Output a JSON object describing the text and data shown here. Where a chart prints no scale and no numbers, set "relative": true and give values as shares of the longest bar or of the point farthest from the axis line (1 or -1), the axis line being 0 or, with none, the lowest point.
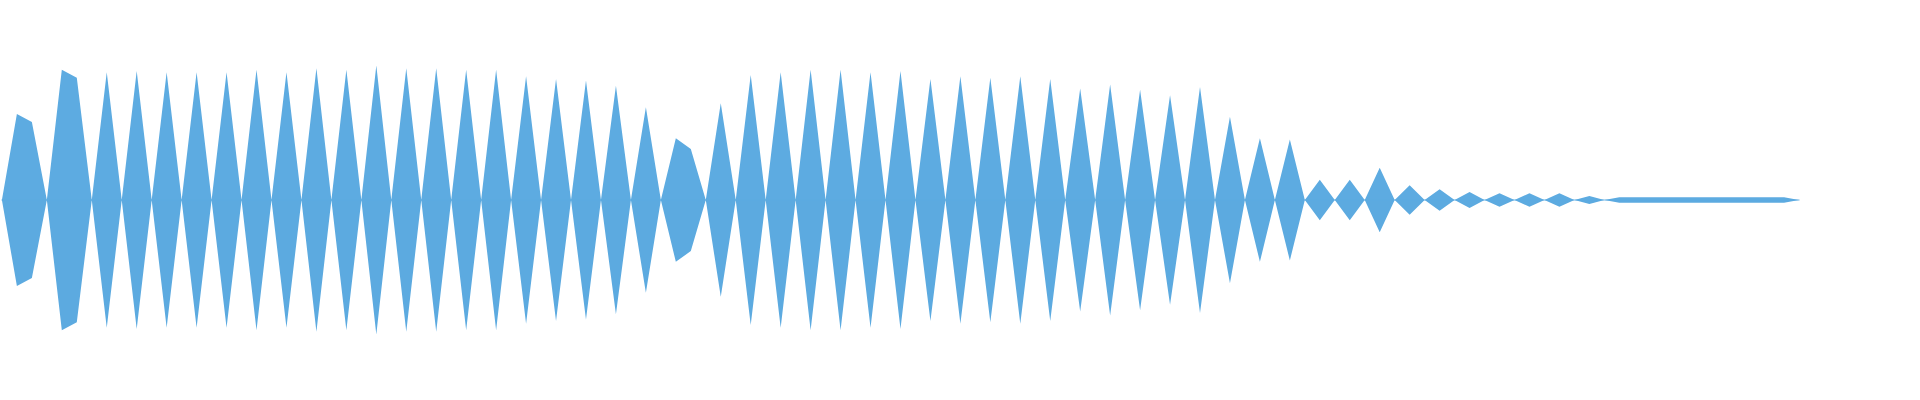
{
  "chart_data": {
    "type": "area",
    "relative": true,
    "categories": [
      null,
      null,
      null,
      null,
      null,
      null,
      null,
      null,
      null,
      null,
      null,
      null,
      null,
      null,
      null,
      null,
      null,
      null,
      null,
      null,
      null,
      null,
      null,
      null,
      null,
      null,
      null,
      null,
      null,
      null,
      null,
      null,
      null,
      null,
      null,
      null,
      null,
      null,
      null,
      null,
      null,
      null,
      null,
      null,
      null,
      null,
      null,
      null,
      null,
      null,
      null,
      null,
      null,
      null,
      null,
      null,
      null,
      null,
      null,
      null,
      null,
      null,
      null,
      null,
      null,
      null,
      null,
      null,
      null,
      null,
      null,
      null,
      null,
      null,
      null,
      null,
      null,
      null,
      null,
      null,
      null,
      null,
      null,
      null,
      null,
      null,
      null,
      null,
      null,
      null,
      null,
      null,
      null,
      null,
      null,
      null,
      null,
      null,
      null,
      null,
      null,
      null,
      null,
      null,
      null,
      null,
      null,
      null,
      null,
      null,
      null,
      null,
      null,
      null,
      null,
      null,
      null,
      null,
      null,
      null,
      null
    ],
    "series": [
      {
        "color": "#5dabe1",
        "values": [
          0,
          0.64,
          0.58,
          0,
          0.97,
          0.91,
          0,
          0.95,
          0,
          0.96,
          0,
          0.95,
          0,
          0.95,
          0,
          0.95,
          0,
          0.97,
          0,
          0.95,
          0,
          0.98,
          0,
          0.97,
          0,
          1.0,
          0,
          0.98,
          0,
          0.98,
          0,
          0.97,
          0,
          0.97,
          0,
          0.92,
          0,
          0.9,
          0,
          0.89,
          0,
          0.85,
          0,
          0.69,
          0,
          0.46,
          0.38,
          0,
          0.72,
          0,
          0.93,
          0,
          0.95,
          0,
          0.97,
          0,
          0.97,
          0,
          0.95,
          0,
          0.96,
          0,
          0.9,
          0,
          0.92,
          0,
          0.91,
          0,
          0.92,
          0,
          0.9,
          0,
          0.83,
          0,
          0.86,
          0,
          0.82,
          0,
          0.78,
          0,
          0.84,
          0,
          0.62,
          0,
          0.46,
          0,
          0.45,
          0,
          0.15,
          0,
          0.15,
          0,
          0.24,
          0,
          0.11,
          0,
          0.08,
          0,
          0.06,
          0,
          0.05,
          0,
          0.05,
          0,
          0.05,
          0,
          0.03,
          0,
          0.02,
          0.02,
          0.02,
          0.02,
          0.02,
          0.02,
          0.02,
          0.02,
          0.02,
          0.02,
          0.02,
          0.02,
          0
        ]
      },
      {
        "color": "#5caae0",
        "values": [
          0,
          -0.64,
          -0.58,
          0,
          -0.97,
          -0.91,
          0,
          -0.95,
          0,
          -0.96,
          0,
          -0.95,
          0,
          -0.95,
          0,
          -0.95,
          0,
          -0.97,
          0,
          -0.95,
          0,
          -0.98,
          0,
          -0.97,
          0,
          -1.0,
          0,
          -0.98,
          0,
          -0.98,
          0,
          -0.97,
          0,
          -0.97,
          0,
          -0.92,
          0,
          -0.9,
          0,
          -0.89,
          0,
          -0.85,
          0,
          -0.69,
          0,
          -0.46,
          -0.38,
          0,
          -0.72,
          0,
          -0.93,
          0,
          -0.95,
          0,
          -0.97,
          0,
          -0.97,
          0,
          -0.95,
          0,
          -0.96,
          0,
          -0.9,
          0,
          -0.92,
          0,
          -0.91,
          0,
          -0.92,
          0,
          -0.9,
          0,
          -0.83,
          0,
          -0.86,
          0,
          -0.82,
          0,
          -0.78,
          0,
          -0.84,
          0,
          -0.62,
          0,
          -0.46,
          0,
          -0.45,
          0,
          -0.15,
          0,
          -0.15,
          0,
          -0.24,
          0,
          -0.11,
          0,
          -0.08,
          0,
          -0.06,
          0,
          -0.05,
          0,
          -0.05,
          0,
          -0.05,
          0,
          -0.03,
          0,
          -0.02,
          -0.02,
          -0.02,
          -0.02,
          -0.02,
          -0.02,
          -0.02,
          -0.02,
          -0.02,
          -0.02,
          -0.02,
          -0.02,
          0
        ]
      }
    ]
  }
}
